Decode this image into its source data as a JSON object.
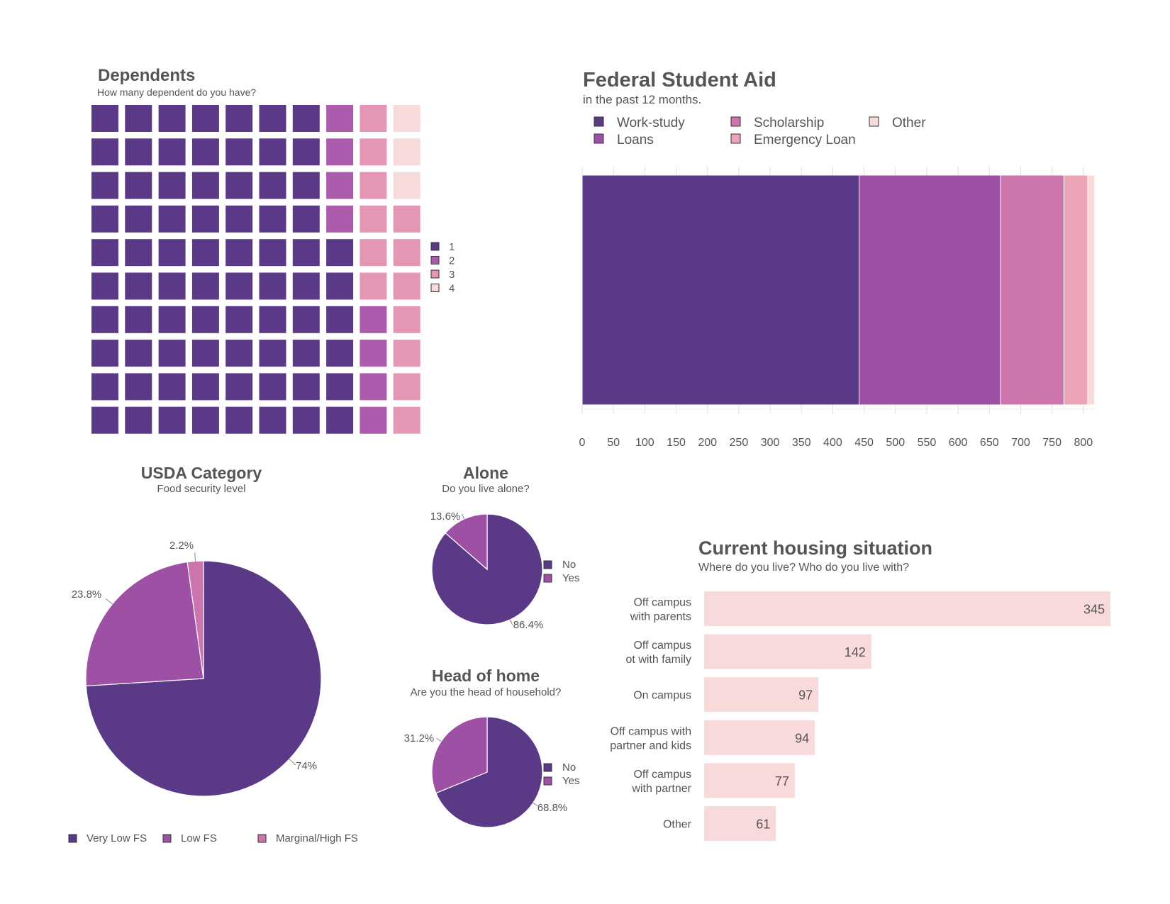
{
  "chart_data": [
    {
      "id": "dependents",
      "type": "waffle",
      "title": "Dependents",
      "subtitle": "How many dependent do you have?",
      "legend": [
        "1",
        "2",
        "3",
        "4"
      ],
      "colors": [
        "#5a3a87",
        "#ac5cac",
        "#e596b5",
        "#f7dada"
      ],
      "counts": [
        76,
        8,
        13,
        3
      ]
    },
    {
      "id": "federal_aid",
      "type": "bar",
      "stacked": true,
      "orientation": "horizontal",
      "title": "Federal Student Aid",
      "subtitle": "in the past 12 months.",
      "series": [
        {
          "name": "Work-study",
          "value": 442,
          "color": "#5a3a87"
        },
        {
          "name": "Loans",
          "value": 226,
          "color": "#9e50a5"
        },
        {
          "name": "Scholarship",
          "value": 101,
          "color": "#cc75ad"
        },
        {
          "name": "Emergency Loan",
          "value": 38,
          "color": "#eca4b6"
        },
        {
          "name": "Other",
          "value": 11,
          "color": "#f8dada"
        }
      ],
      "legend_order": [
        "Work-study",
        "Scholarship",
        "Other",
        "Loans",
        "Emergency Loan"
      ],
      "xlim": [
        0,
        820
      ],
      "xticks": [
        0,
        50,
        100,
        150,
        200,
        250,
        300,
        350,
        400,
        450,
        500,
        550,
        600,
        650,
        700,
        750,
        800
      ]
    },
    {
      "id": "usda",
      "type": "pie",
      "title": "USDA Category",
      "subtitle": "Food security level",
      "slices": [
        {
          "name": "Very Low FS",
          "value": 74,
          "label": "74%",
          "color": "#5a3a87"
        },
        {
          "name": "Low FS",
          "value": 23.8,
          "label": "23.8%",
          "color": "#9e50a5"
        },
        {
          "name": "Marginal/High FS",
          "value": 2.2,
          "label": "2.2%",
          "color": "#cc75ad"
        }
      ],
      "legend_placement": "bottom"
    },
    {
      "id": "alone",
      "type": "pie",
      "title": "Alone",
      "subtitle": "Do you live alone?",
      "slices": [
        {
          "name": "No",
          "value": 86.4,
          "label": "86.4%",
          "color": "#5a3a87"
        },
        {
          "name": "Yes",
          "value": 13.6,
          "label": "13.6%",
          "color": "#9e50a5"
        }
      ],
      "legend_placement": "right"
    },
    {
      "id": "head",
      "type": "pie",
      "title": "Head of home",
      "subtitle": "Are you the head of household?",
      "slices": [
        {
          "name": "No",
          "value": 68.8,
          "label": "68.8%",
          "color": "#5a3a87"
        },
        {
          "name": "Yes",
          "value": 31.2,
          "label": "31.2%",
          "color": "#9e50a5"
        }
      ],
      "legend_placement": "right"
    },
    {
      "id": "housing",
      "type": "bar",
      "orientation": "horizontal",
      "title": "Current housing situation",
      "subtitle": "Where do you live? Who do you live with?",
      "bar_color": "#f8dada",
      "categories": [
        [
          "Off campus",
          "with parents"
        ],
        [
          "Off campus",
          "ot with family"
        ],
        [
          "On campus"
        ],
        [
          "Off campus with",
          "partner and kids"
        ],
        [
          "Off campus",
          "with partner"
        ],
        [
          "Other"
        ]
      ],
      "values": [
        345,
        142,
        97,
        94,
        77,
        61
      ],
      "xlim": [
        0,
        345
      ]
    }
  ]
}
